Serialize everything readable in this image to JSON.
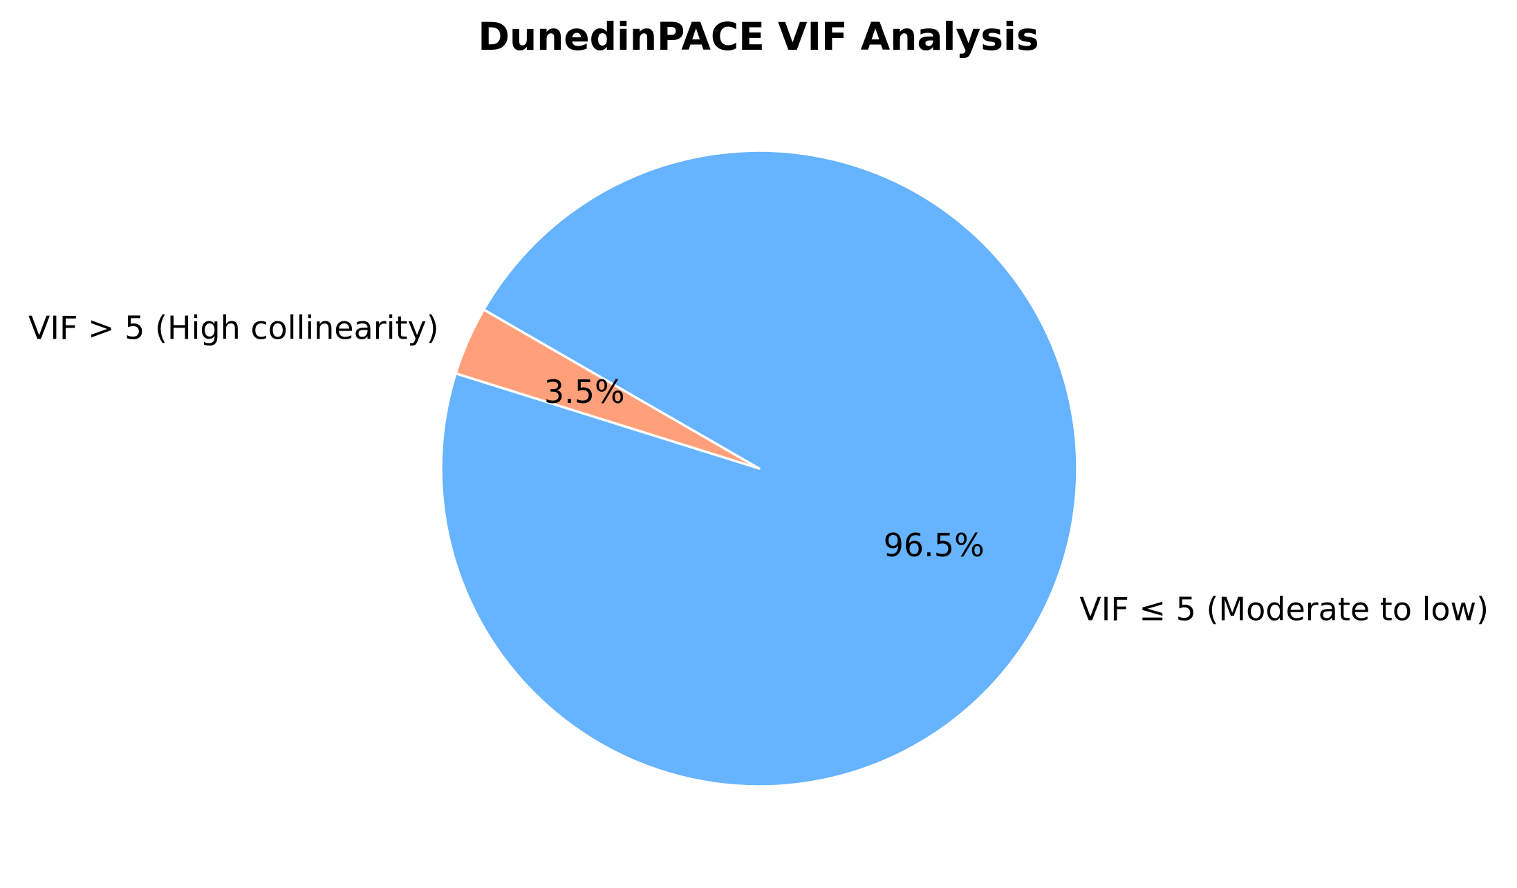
{
  "chart_data": {
    "type": "pie",
    "title": "DunedinPACE VIF Analysis",
    "start_angle_deg": 150,
    "counterclock": true,
    "slices": [
      {
        "label": "VIF > 5 (High collinearity)",
        "value": 3.5,
        "pct_label": "3.5%",
        "color": "#ffa07a"
      },
      {
        "label": "VIF ≤ 5 (Moderate to low)",
        "value": 96.5,
        "pct_label": "96.5%",
        "color": "#66b3ff"
      }
    ],
    "edge_color": "#ffffff"
  }
}
